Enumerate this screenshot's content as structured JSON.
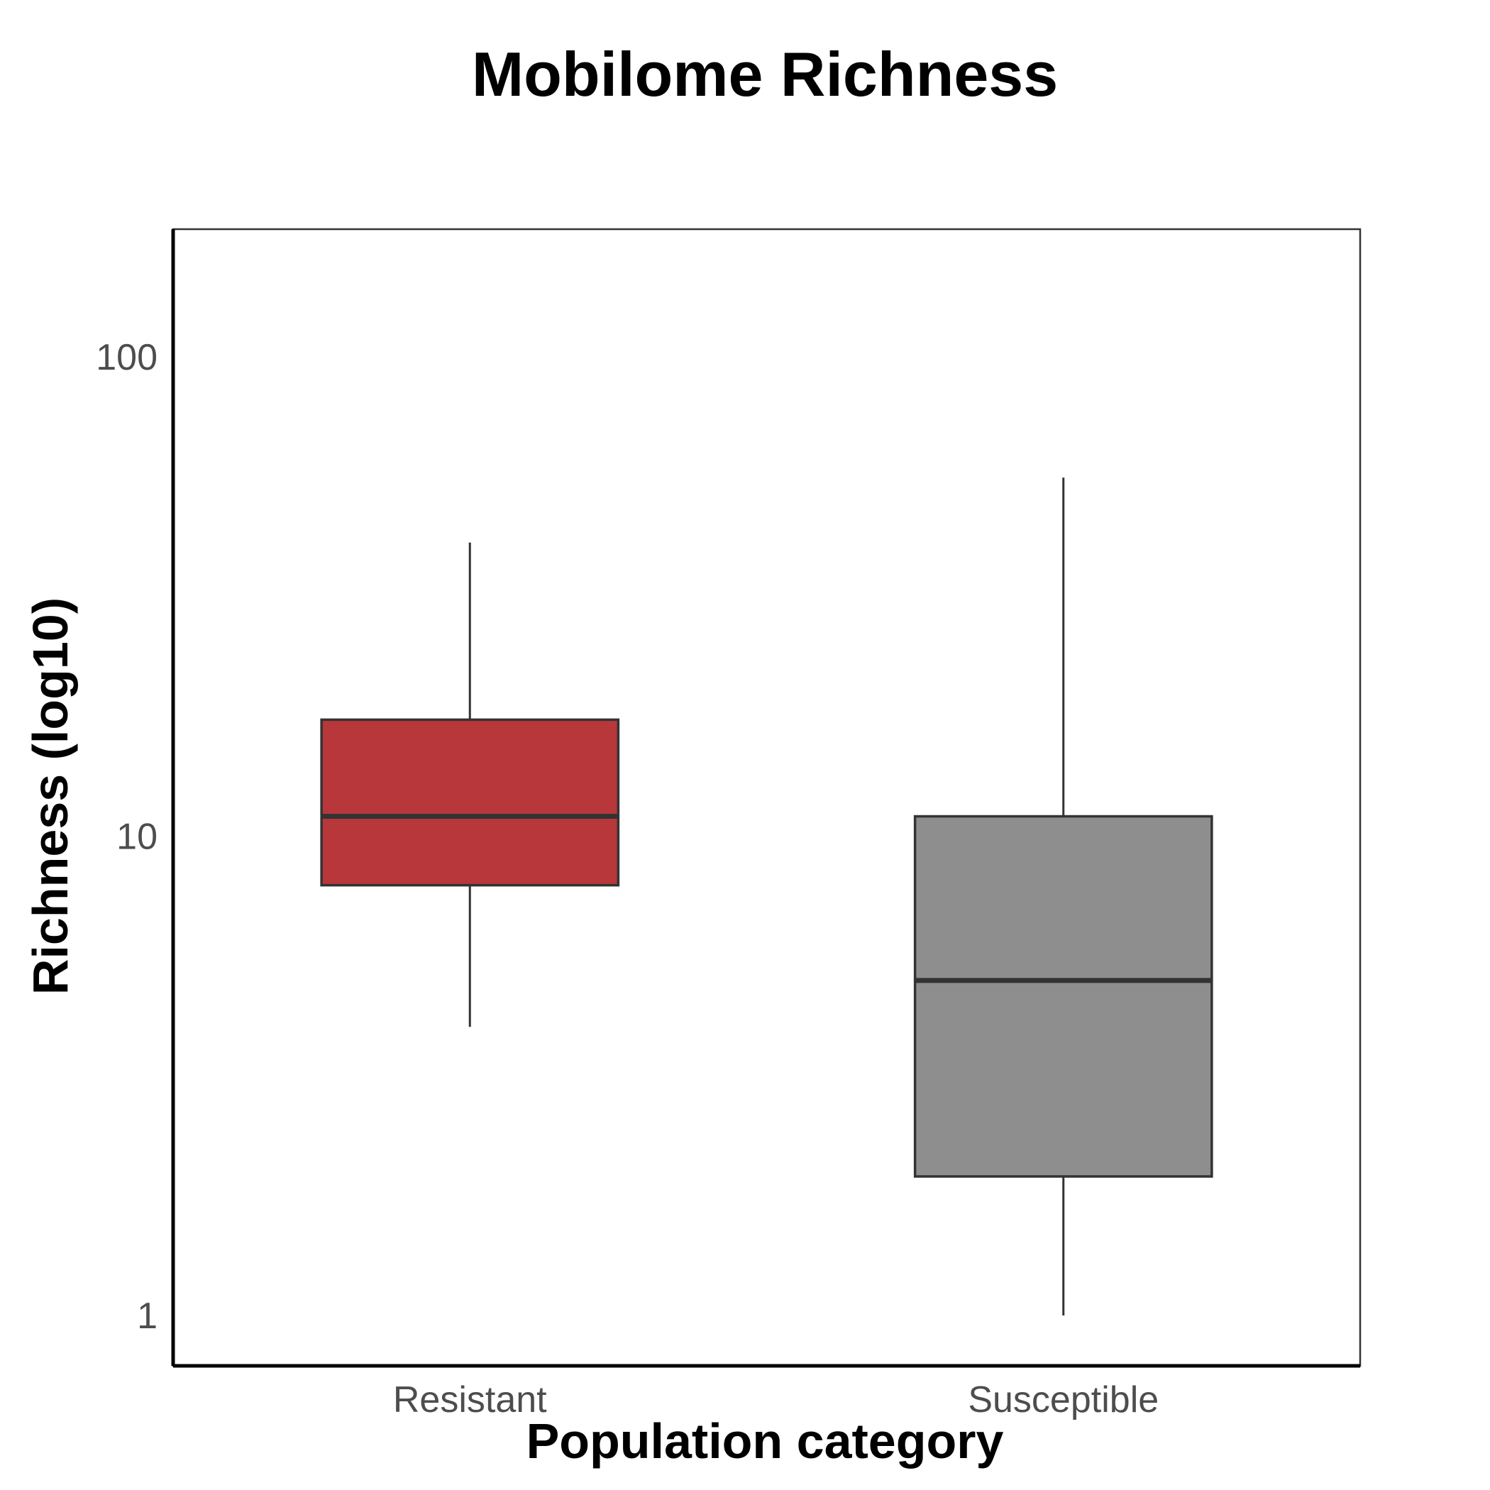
{
  "chart_data": {
    "type": "boxplot",
    "title": "Mobilome Richness",
    "xlabel": "Population category",
    "ylabel": "Richness (log10)",
    "y_scale": "log10",
    "ylim": [
      0.8,
      180
    ],
    "y_ticks": [
      {
        "value": 1,
        "label": "1"
      },
      {
        "value": 10,
        "label": "10"
      },
      {
        "value": 100,
        "label": "100"
      }
    ],
    "grid": false,
    "categories": [
      "Resistant",
      "Susceptible"
    ],
    "boxes": [
      {
        "category": "Resistant",
        "min": 4,
        "q1": 7.9,
        "median": 11,
        "q3": 17.5,
        "max": 41,
        "color": "#b8373a"
      },
      {
        "category": "Susceptible",
        "min": 1,
        "q1": 1.95,
        "median": 5,
        "q3": 11,
        "max": 56,
        "color": "#8e8e8e"
      }
    ]
  }
}
